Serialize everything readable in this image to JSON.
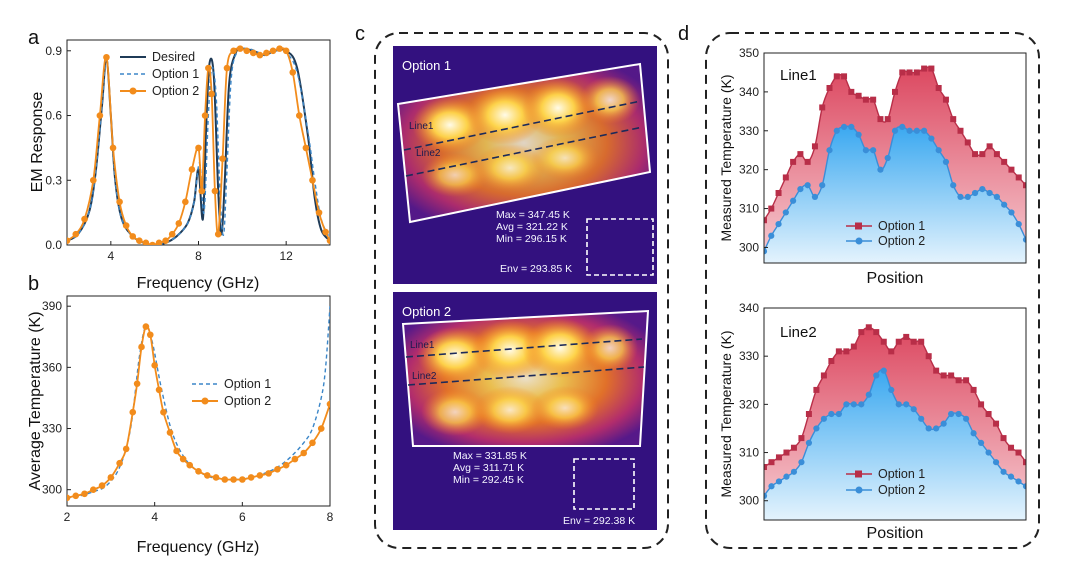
{
  "panels": {
    "a": "a",
    "b": "b",
    "c": "c",
    "d": "d"
  },
  "colors": {
    "desired": "#1f3b57",
    "option1": "#3b86c8",
    "option2": "#f28c1c",
    "opt1_dark": "#b82e48",
    "opt2_blue": "#3a8ed8",
    "dash_box": "#222222"
  },
  "chart_data": [
    {
      "id": "a",
      "type": "line",
      "xlabel": "Frequency (GHz)",
      "ylabel": "EM Response",
      "xlim": [
        2,
        14
      ],
      "ylim": [
        0,
        0.95
      ],
      "xticks": [
        4,
        8,
        12
      ],
      "yticks": [
        0.0,
        0.3,
        0.6,
        0.9
      ],
      "tick_labels_y": [
        "0.0",
        "0.3",
        "0.6",
        "0.9"
      ],
      "legend": [
        "Desired",
        "Option 1",
        "Option 2"
      ],
      "series": [
        {
          "name": "Desired",
          "style": "solid",
          "x": [
            2,
            2.5,
            3,
            3.3,
            3.6,
            3.8,
            4.0,
            4.2,
            4.5,
            5,
            5.5,
            6,
            6.5,
            7,
            7.5,
            7.8,
            8.0,
            8.2,
            8.35,
            8.5,
            8.7,
            8.9,
            9.05,
            9.2,
            9.4,
            9.7,
            10,
            10.5,
            11,
            11.5,
            12,
            12.5,
            13,
            13.3,
            13.6,
            14
          ],
          "y": [
            0.02,
            0.05,
            0.15,
            0.33,
            0.65,
            0.87,
            0.6,
            0.3,
            0.12,
            0.04,
            0.01,
            0.0,
            0.01,
            0.04,
            0.1,
            0.2,
            0.35,
            0.12,
            0.55,
            0.84,
            0.78,
            0.25,
            0.05,
            0.3,
            0.75,
            0.89,
            0.91,
            0.9,
            0.88,
            0.9,
            0.9,
            0.82,
            0.5,
            0.22,
            0.07,
            0.02
          ]
        },
        {
          "name": "Option 1",
          "style": "dashed",
          "x": [
            2,
            2.5,
            3,
            3.3,
            3.6,
            3.8,
            4.0,
            4.2,
            4.5,
            5,
            5.5,
            6,
            6.5,
            7,
            7.5,
            7.8,
            8.05,
            8.25,
            8.45,
            8.6,
            8.8,
            9.0,
            9.15,
            9.3,
            9.5,
            9.8,
            10.2,
            10.6,
            11,
            11.5,
            12,
            12.5,
            13,
            13.3,
            13.6,
            14
          ],
          "y": [
            0.02,
            0.05,
            0.15,
            0.33,
            0.65,
            0.87,
            0.6,
            0.3,
            0.12,
            0.04,
            0.01,
            0.0,
            0.01,
            0.04,
            0.1,
            0.2,
            0.38,
            0.15,
            0.6,
            0.82,
            0.7,
            0.2,
            0.05,
            0.35,
            0.78,
            0.9,
            0.91,
            0.9,
            0.88,
            0.9,
            0.89,
            0.8,
            0.52,
            0.3,
            0.12,
            0.03
          ]
        },
        {
          "name": "Option 2",
          "style": "marker",
          "x": [
            2,
            2.4,
            2.8,
            3.2,
            3.5,
            3.8,
            4.1,
            4.4,
            4.7,
            5,
            5.3,
            5.6,
            5.9,
            6.2,
            6.5,
            6.8,
            7.1,
            7.4,
            7.7,
            8.0,
            8.15,
            8.3,
            8.45,
            8.6,
            8.75,
            8.9,
            9.1,
            9.3,
            9.6,
            9.9,
            10.2,
            10.5,
            10.8,
            11.1,
            11.4,
            11.7,
            12.0,
            12.3,
            12.6,
            12.9,
            13.2,
            13.5,
            13.8,
            14
          ],
          "y": [
            0.02,
            0.05,
            0.12,
            0.3,
            0.6,
            0.87,
            0.45,
            0.2,
            0.09,
            0.04,
            0.02,
            0.01,
            0.0,
            0.01,
            0.02,
            0.05,
            0.1,
            0.2,
            0.35,
            0.45,
            0.25,
            0.6,
            0.82,
            0.7,
            0.25,
            0.05,
            0.4,
            0.82,
            0.9,
            0.91,
            0.9,
            0.89,
            0.88,
            0.89,
            0.9,
            0.91,
            0.9,
            0.8,
            0.6,
            0.45,
            0.3,
            0.15,
            0.06,
            0.02
          ]
        }
      ]
    },
    {
      "id": "b",
      "type": "line",
      "xlabel": "Frequency (GHz)",
      "ylabel": "Average Temperature (K)",
      "xlim": [
        2,
        8
      ],
      "ylim": [
        292,
        395
      ],
      "xticks": [
        2,
        4,
        6,
        8
      ],
      "yticks": [
        300,
        330,
        360,
        390
      ],
      "legend": [
        "Option 1",
        "Option 2"
      ],
      "series": [
        {
          "name": "Option 1",
          "style": "dashed",
          "x": [
            2,
            2.3,
            2.6,
            2.9,
            3.2,
            3.45,
            3.65,
            3.8,
            3.95,
            4.15,
            4.4,
            4.7,
            5,
            5.3,
            5.6,
            5.9,
            6.2,
            6.5,
            6.8,
            7.1,
            7.4,
            7.6,
            7.8,
            7.9,
            8.0
          ],
          "y": [
            296,
            297,
            299,
            302,
            311,
            330,
            365,
            380,
            372,
            350,
            328,
            315,
            309,
            306,
            305,
            305,
            306,
            308,
            311,
            316,
            323,
            330,
            345,
            360,
            390
          ]
        },
        {
          "name": "Option 2",
          "style": "marker",
          "x": [
            2,
            2.2,
            2.4,
            2.6,
            2.8,
            3.0,
            3.2,
            3.35,
            3.5,
            3.6,
            3.7,
            3.8,
            3.9,
            4.0,
            4.1,
            4.2,
            4.35,
            4.5,
            4.65,
            4.8,
            5.0,
            5.2,
            5.4,
            5.6,
            5.8,
            6.0,
            6.2,
            6.4,
            6.6,
            6.8,
            7.0,
            7.2,
            7.4,
            7.6,
            7.8,
            8.0
          ],
          "y": [
            296,
            297,
            298,
            300,
            302,
            306,
            313,
            320,
            338,
            352,
            370,
            380,
            376,
            361,
            349,
            338,
            328,
            319,
            315,
            312,
            309,
            307,
            306,
            305,
            305,
            305,
            306,
            307,
            308,
            310,
            312,
            315,
            318,
            323,
            330,
            342
          ]
        }
      ]
    },
    {
      "id": "d1",
      "type": "area",
      "xlabel": "Position",
      "ylabel": "Measured Temperature (K)",
      "ylim": [
        296,
        350
      ],
      "yticks": [
        300,
        310,
        320,
        330,
        340,
        350
      ],
      "annotation": "Line1",
      "legend": [
        "Option 1",
        "Option 2"
      ],
      "series": [
        {
          "name": "Option 1",
          "y": [
            307,
            310,
            314,
            318,
            322,
            324,
            322,
            326,
            336,
            341,
            344,
            344,
            340,
            339,
            338,
            338,
            333,
            333,
            340,
            345,
            345,
            345,
            346,
            346,
            341,
            338,
            333,
            330,
            327,
            324,
            324,
            326,
            324,
            322,
            320,
            318,
            316
          ]
        },
        {
          "name": "Option 2",
          "y": [
            299,
            303,
            306,
            309,
            312,
            315,
            316,
            313,
            316,
            325,
            330,
            331,
            331,
            329,
            325,
            325,
            320,
            323,
            330,
            331,
            330,
            330,
            330,
            328,
            325,
            322,
            316,
            313,
            313,
            314,
            315,
            314,
            313,
            311,
            309,
            306,
            302
          ]
        }
      ]
    },
    {
      "id": "d2",
      "type": "area",
      "xlabel": "Position",
      "ylabel": "Measured Temperature (K)",
      "ylim": [
        296,
        340
      ],
      "yticks": [
        300,
        310,
        320,
        330,
        340
      ],
      "annotation": "Line2",
      "legend": [
        "Option 1",
        "Option 2"
      ],
      "series": [
        {
          "name": "Option 1",
          "y": [
            307,
            308,
            309,
            310,
            311,
            313,
            318,
            323,
            326,
            329,
            331,
            331,
            332,
            335,
            336,
            335,
            333,
            331,
            333,
            334,
            333,
            333,
            330,
            327,
            326,
            326,
            325,
            325,
            323,
            320,
            318,
            316,
            313,
            311,
            310,
            308
          ]
        },
        {
          "name": "Option 2",
          "y": [
            301,
            303,
            304,
            305,
            306,
            308,
            312,
            315,
            317,
            318,
            318,
            320,
            320,
            320,
            322,
            326,
            327,
            323,
            320,
            320,
            319,
            317,
            315,
            315,
            316,
            318,
            318,
            317,
            314,
            312,
            310,
            308,
            306,
            305,
            304,
            303
          ]
        }
      ]
    }
  ],
  "thermal": {
    "option1": {
      "label": "Option 1",
      "line1": "Line1",
      "line2": "Line2",
      "max": "Max = 347.45 K",
      "avg": "Avg = 321.22 K",
      "min": "Min = 296.15 K",
      "env": "Env = 293.85 K"
    },
    "option2": {
      "label": "Option 2",
      "line1": "Line1",
      "line2": "Line2",
      "max": "Max = 331.85 K",
      "avg": "Avg = 311.71 K",
      "min": "Min = 292.45 K",
      "env": "Env = 292.38 K"
    }
  }
}
